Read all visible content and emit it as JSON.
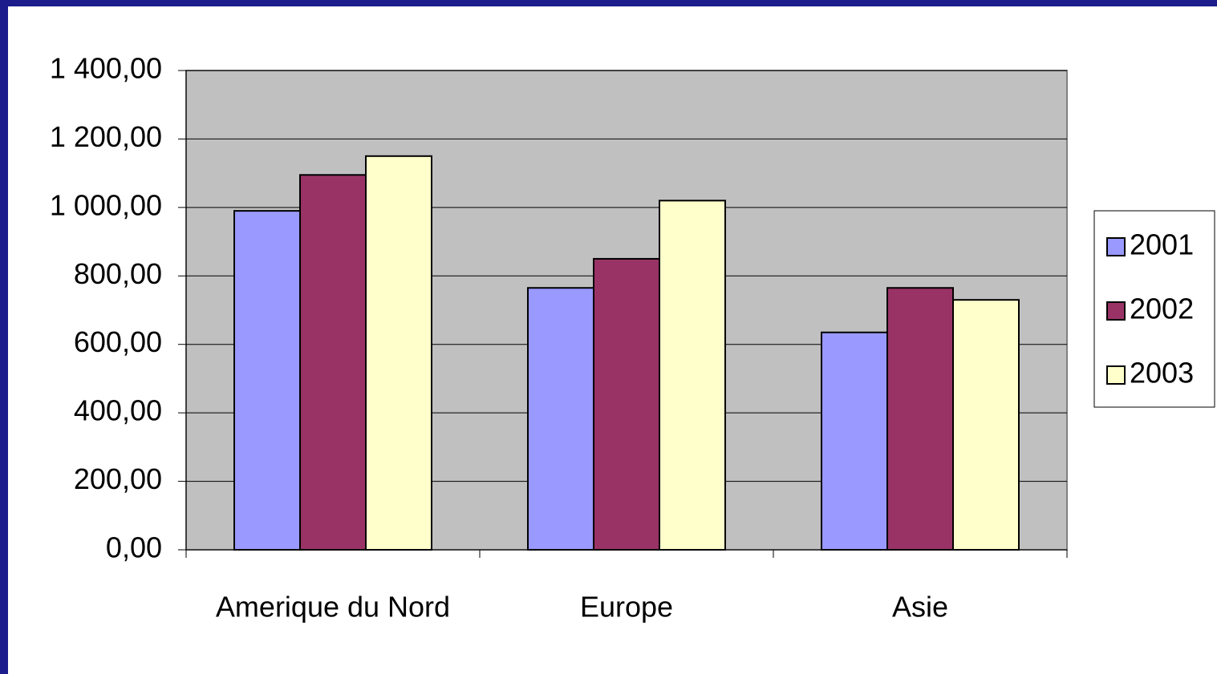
{
  "chart_data": {
    "type": "bar",
    "categories": [
      "Amerique du Nord",
      "Europe",
      "Asie"
    ],
    "series": [
      {
        "name": "2001",
        "color": "#9999ff",
        "values": [
          990,
          765,
          635
        ]
      },
      {
        "name": "2002",
        "color": "#993366",
        "values": [
          1095,
          850,
          765
        ]
      },
      {
        "name": "2003",
        "color": "#ffffcc",
        "values": [
          1150,
          1020,
          730
        ]
      }
    ],
    "ylim": [
      0,
      1400
    ],
    "yticks": [
      {
        "value": 0,
        "label": "0,00"
      },
      {
        "value": 200,
        "label": "200,00"
      },
      {
        "value": 400,
        "label": "400,00"
      },
      {
        "value": 600,
        "label": "600,00"
      },
      {
        "value": 800,
        "label": "800,00"
      },
      {
        "value": 1000,
        "label": "1 000,00"
      },
      {
        "value": 1200,
        "label": "1 200,00"
      },
      {
        "value": 1400,
        "label": "1 400,00"
      }
    ],
    "grid": true,
    "legend": "right"
  }
}
